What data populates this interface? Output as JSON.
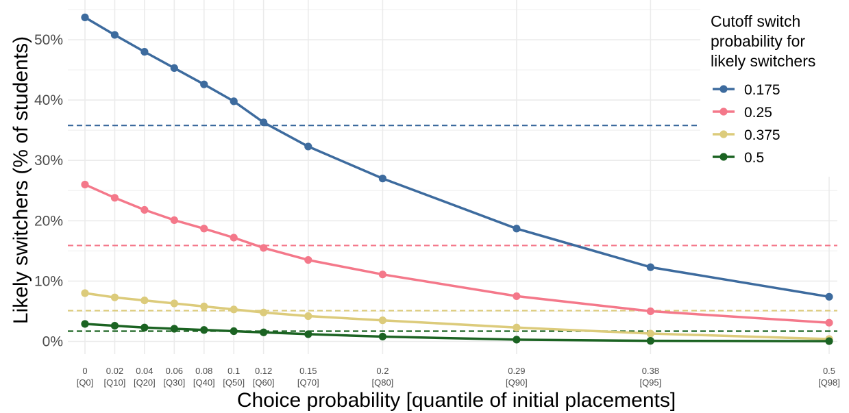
{
  "chart_data": {
    "type": "line",
    "xlabel": "Choice probability [quantile of initial placements]",
    "ylabel": "Likely switchers (% of students)",
    "x": [
      0,
      0.02,
      0.04,
      0.06,
      0.08,
      0.1,
      0.12,
      0.15,
      0.2,
      0.29,
      0.38,
      0.5
    ],
    "x_tick_labels": [
      "0",
      "0.02",
      "0.04",
      "0.06",
      "0.08",
      "0.1",
      "0.12",
      "0.15",
      "0.2",
      "0.29",
      "0.38",
      "0.5"
    ],
    "x_tick_sublabels": [
      "[Q0]",
      "[Q10]",
      "[Q20]",
      "[Q30]",
      "[Q40]",
      "[Q50]",
      "[Q60]",
      "[Q70]",
      "[Q80]",
      "[Q90]",
      "[Q95]",
      "[Q98]"
    ],
    "ylim": [
      0,
      55
    ],
    "y_ticks": [
      0,
      10,
      20,
      30,
      40,
      50
    ],
    "y_tick_labels": [
      "0%",
      "10%",
      "20%",
      "30%",
      "40%",
      "50%"
    ],
    "grid": true,
    "legend": {
      "title": "Cutoff switch probability for likely switchers",
      "title_lines": [
        "Cutoff switch",
        "probability for",
        "likely switchers"
      ],
      "placement": "right"
    },
    "series": [
      {
        "name": "0.175",
        "color": "#3d6b9e",
        "values": [
          53.7,
          50.8,
          48.0,
          45.3,
          42.6,
          39.8,
          36.3,
          32.3,
          27.0,
          18.7,
          12.3,
          7.4
        ],
        "reference": 35.8
      },
      {
        "name": "0.25",
        "color": "#f4788a",
        "values": [
          26.0,
          23.8,
          21.8,
          20.1,
          18.7,
          17.2,
          15.5,
          13.5,
          11.1,
          7.5,
          5.0,
          3.1
        ],
        "reference": 15.9
      },
      {
        "name": "0.375",
        "color": "#dccb7b",
        "values": [
          8.0,
          7.3,
          6.8,
          6.3,
          5.8,
          5.3,
          4.8,
          4.2,
          3.5,
          2.3,
          1.3,
          0.4
        ],
        "reference": 5.1
      },
      {
        "name": "0.5",
        "color": "#1b6322",
        "values": [
          2.9,
          2.6,
          2.3,
          2.1,
          1.9,
          1.7,
          1.5,
          1.2,
          0.8,
          0.3,
          0.1,
          0.05
        ],
        "reference": 1.7
      }
    ]
  }
}
